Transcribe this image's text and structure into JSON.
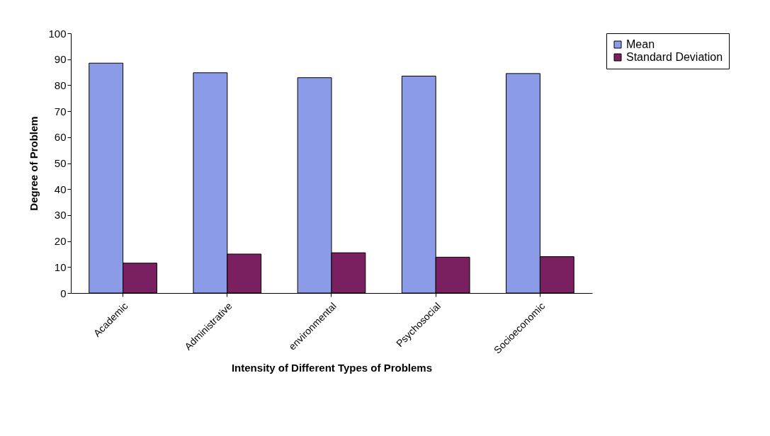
{
  "chart_data": {
    "type": "bar",
    "xlabel": "Intensity of  Different Types of Problems",
    "ylabel": "Degree of Problem",
    "categories": [
      "Academic",
      "Administrative",
      "environmental",
      "Psychosocial",
      "Socioeconomic"
    ],
    "series": [
      {
        "name": "Mean",
        "color": "#8b9be8",
        "values": [
          88.5,
          84.8,
          82.9,
          83.5,
          84.5
        ]
      },
      {
        "name": "Standard Deviation",
        "color": "#7a2060",
        "values": [
          11.5,
          15,
          15.5,
          13.8,
          14
        ]
      }
    ],
    "ylim": [
      0,
      100
    ],
    "yticks": [
      0,
      10,
      20,
      30,
      40,
      50,
      60,
      70,
      80,
      90,
      100
    ],
    "grid": false,
    "legend": "right"
  }
}
